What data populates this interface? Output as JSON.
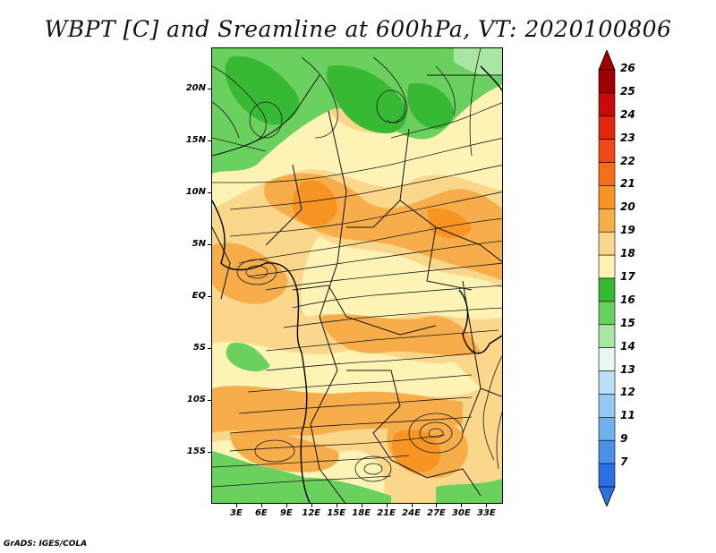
{
  "title": "WBPT [C] and Sreamline at 600hPa, VT: 2020100806",
  "credit": "GrADS: IGES/COLA",
  "map": {
    "lon_range": [
      0,
      35
    ],
    "lat_range": [
      -20,
      24
    ],
    "lat_ticks": [
      {
        "label": "20N",
        "lat": 20
      },
      {
        "label": "15N",
        "lat": 15
      },
      {
        "label": "10N",
        "lat": 10
      },
      {
        "label": "5N",
        "lat": 5
      },
      {
        "label": "EQ",
        "lat": 0
      },
      {
        "label": "5S",
        "lat": -5
      },
      {
        "label": "10S",
        "lat": -10
      },
      {
        "label": "15S",
        "lat": -15
      }
    ],
    "lon_ticks": [
      {
        "label": "3E",
        "lon": 3
      },
      {
        "label": "6E",
        "lon": 6
      },
      {
        "label": "9E",
        "lon": 9
      },
      {
        "label": "12E",
        "lon": 12
      },
      {
        "label": "15E",
        "lon": 15
      },
      {
        "label": "18E",
        "lon": 18
      },
      {
        "label": "21E",
        "lon": 21
      },
      {
        "label": "24E",
        "lon": 24
      },
      {
        "label": "27E",
        "lon": 27
      },
      {
        "label": "30E",
        "lon": 30
      },
      {
        "label": "33E",
        "lon": 33
      }
    ]
  },
  "colorbar": {
    "levels": [
      {
        "label": "26",
        "color": "#a00000"
      },
      {
        "label": "25",
        "color": "#c80a0a"
      },
      {
        "label": "24",
        "color": "#e1260e"
      },
      {
        "label": "23",
        "color": "#ef4a15"
      },
      {
        "label": "22",
        "color": "#f36f1a"
      },
      {
        "label": "21",
        "color": "#f79422"
      },
      {
        "label": "20",
        "color": "#f7ad4a"
      },
      {
        "label": "19",
        "color": "#fbd78c"
      },
      {
        "label": "18",
        "color": "#fdf3b5"
      },
      {
        "label": "17",
        "color": "#37b934"
      },
      {
        "label": "16",
        "color": "#6ad15e"
      },
      {
        "label": "15",
        "color": "#a9e6a2"
      },
      {
        "label": "14",
        "color": "#e5f9f0"
      },
      {
        "label": "13",
        "color": "#bde0f8"
      },
      {
        "label": "12",
        "color": "#96c9f2"
      },
      {
        "label": "11",
        "color": "#6fb0ee"
      },
      {
        "label": "9",
        "color": "#4a92e8"
      },
      {
        "label": "7",
        "color": "#2c6fe0"
      }
    ],
    "under_color": "#2c6fe0",
    "over_color": "#a00000"
  }
}
